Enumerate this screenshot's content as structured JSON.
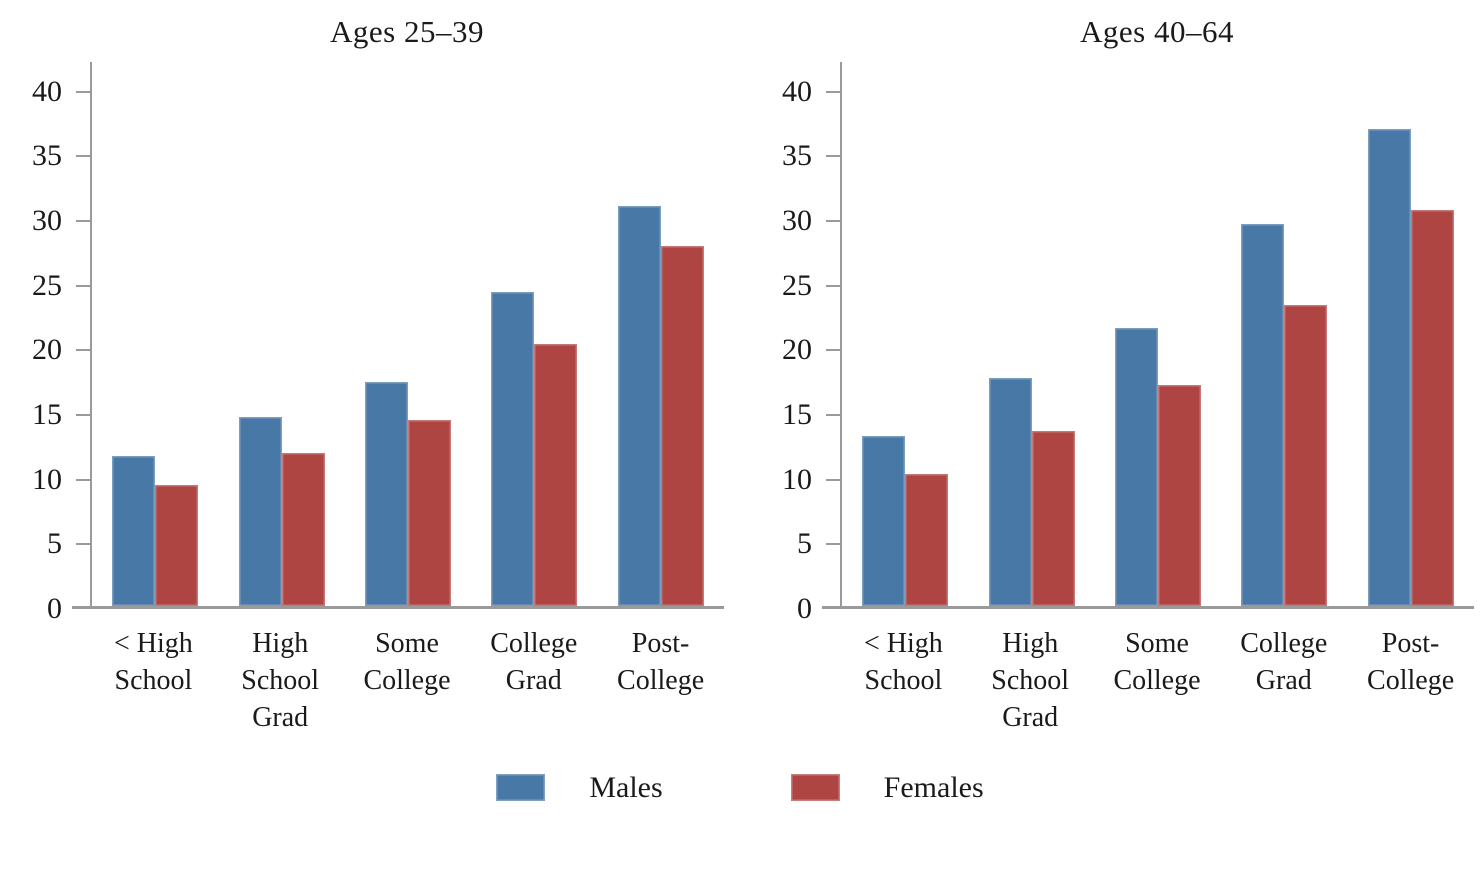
{
  "colors": {
    "males": "#4878a5",
    "females": "#af4543",
    "axis": "#9a9a9a",
    "text": "#1a1a1a",
    "background": "#ffffff"
  },
  "y_axis": {
    "min": 0,
    "max": 40,
    "step": 5,
    "ticks": [
      0,
      5,
      10,
      15,
      20,
      25,
      30,
      35,
      40
    ],
    "top_value": 42.3
  },
  "x_tick_labels": [
    "< High\nSchool",
    "High\nSchool\nGrad",
    "Some\nCollege",
    "College\nGrad",
    "Post-\nCollege"
  ],
  "legend": {
    "position": "bottom",
    "items": [
      {
        "label": "Males",
        "color_key": "males"
      },
      {
        "label": "Females",
        "color_key": "females"
      }
    ]
  },
  "chart_data": [
    {
      "type": "bar",
      "title": "Ages 25–39",
      "categories": [
        "< High School",
        "High School Grad",
        "Some College",
        "College Grad",
        "Post-College"
      ],
      "series": [
        {
          "name": "Males",
          "values": [
            11.7,
            14.7,
            17.4,
            24.4,
            31.1
          ]
        },
        {
          "name": "Females",
          "values": [
            9.4,
            11.9,
            14.5,
            20.4,
            28.0
          ]
        }
      ],
      "ylim": [
        0,
        40
      ],
      "grid": false,
      "legend_position": "bottom"
    },
    {
      "type": "bar",
      "title": "Ages 40–64",
      "categories": [
        "< High School",
        "High School Grad",
        "Some College",
        "College Grad",
        "Post-College"
      ],
      "series": [
        {
          "name": "Males",
          "values": [
            13.2,
            17.7,
            21.6,
            29.7,
            37.1
          ]
        },
        {
          "name": "Females",
          "values": [
            10.3,
            13.6,
            17.2,
            23.4,
            30.8
          ]
        }
      ],
      "ylim": [
        0,
        40
      ],
      "grid": false,
      "legend_position": "bottom"
    }
  ]
}
